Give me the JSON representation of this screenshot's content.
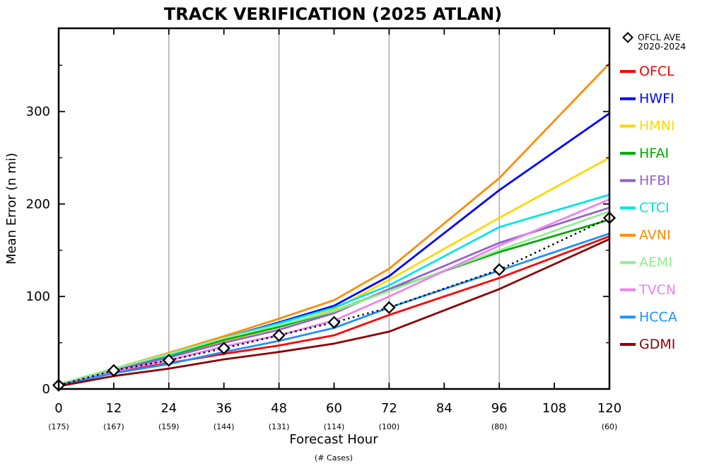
{
  "title": "TRACK VERIFICATION (2025 ATLAN)",
  "chart_data": {
    "type": "line",
    "title": "TRACK VERIFICATION (2025 ATLAN)",
    "xlabel": "Forecast Hour",
    "ylabel": "Mean Error (n mi)",
    "cases_label": "(# Cases)",
    "xlim": [
      0,
      120
    ],
    "ylim": [
      0,
      390
    ],
    "x_ticks": [
      0,
      12,
      24,
      36,
      48,
      60,
      72,
      84,
      96,
      108,
      120
    ],
    "y_ticks": [
      0,
      100,
      200,
      300
    ],
    "y_minor_ticks": [
      50,
      150,
      250,
      350
    ],
    "gridlines_x": [
      24,
      48,
      72,
      96
    ],
    "grid_color": "#999999",
    "x": [
      0,
      12,
      24,
      36,
      48,
      60,
      72,
      96,
      120
    ],
    "cases": [
      175,
      167,
      159,
      144,
      131,
      114,
      100,
      80,
      60
    ],
    "reference_series": {
      "name": "OFCL AVE",
      "sublabel": "2020-2024",
      "color": "#000000",
      "style": "dotted",
      "marker": "diamond",
      "values": [
        4,
        20,
        31,
        44,
        58,
        72,
        88,
        129,
        185
      ]
    },
    "series": [
      {
        "name": "OFCL",
        "color": "#ff0000",
        "values": [
          4,
          18,
          28,
          38,
          47,
          58,
          80,
          120,
          165
        ]
      },
      {
        "name": "HWFI",
        "color": "#0000ff",
        "values": [
          5,
          22,
          38,
          55,
          72,
          90,
          122,
          215,
          298
        ]
      },
      {
        "name": "HMNI",
        "color": "#ffd700",
        "values": [
          5,
          21,
          36,
          52,
          67,
          86,
          118,
          185,
          250
        ]
      },
      {
        "name": "HFAI",
        "color": "#00a800",
        "values": [
          5,
          21,
          36,
          53,
          67,
          84,
          107,
          148,
          183
        ]
      },
      {
        "name": "HFBI",
        "color": "#9560cc",
        "values": [
          4,
          20,
          34,
          50,
          64,
          82,
          108,
          158,
          196
        ]
      },
      {
        "name": "CTCI",
        "color": "#00e5e5",
        "values": [
          5,
          22,
          37,
          55,
          71,
          88,
          112,
          175,
          210
        ]
      },
      {
        "name": "AVNI",
        "color": "#ff8c00",
        "values": [
          5,
          22,
          39,
          57,
          76,
          96,
          130,
          228,
          352
        ]
      },
      {
        "name": "AEMI",
        "color": "#90ee90",
        "values": [
          5,
          22,
          38,
          55,
          69,
          84,
          106,
          150,
          192
        ]
      },
      {
        "name": "TVCN",
        "color": "#ee82ee",
        "values": [
          4,
          19,
          31,
          46,
          58,
          74,
          100,
          155,
          205
        ]
      },
      {
        "name": "HCCA",
        "color": "#1e90ff",
        "values": [
          4,
          17,
          27,
          40,
          52,
          66,
          88,
          128,
          168
        ]
      },
      {
        "name": "GDMI",
        "color": "#8b0000",
        "values": [
          3,
          14,
          22,
          32,
          40,
          49,
          62,
          108,
          162
        ]
      }
    ],
    "legend_position": "right"
  }
}
